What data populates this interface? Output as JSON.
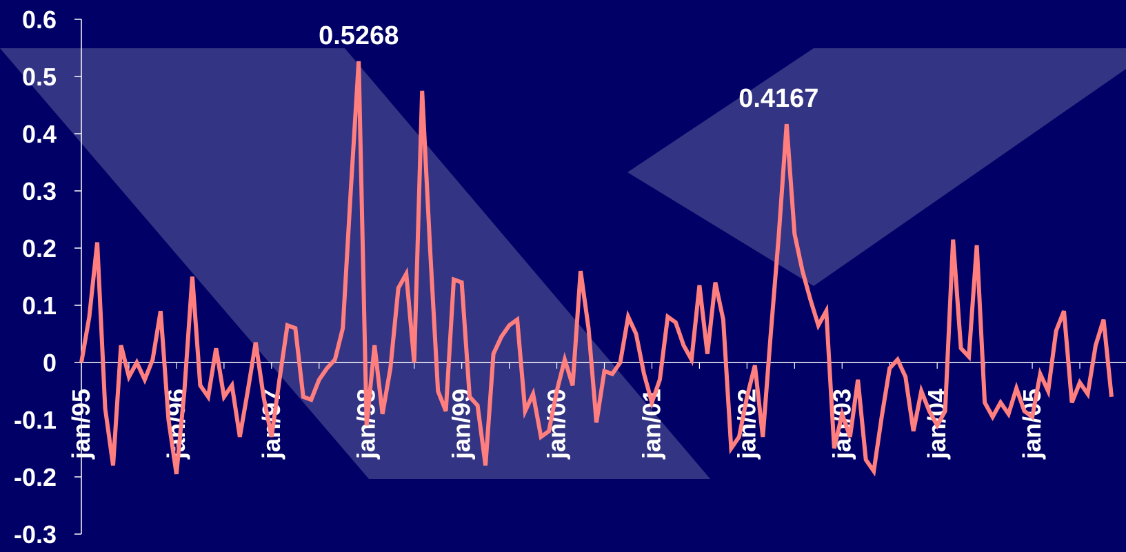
{
  "colors": {
    "background": "#000066",
    "line": "#ff7f7f",
    "axis": "#ffffff",
    "decor": "#3d3d8a"
  },
  "chart_data": {
    "type": "line",
    "title": "",
    "xlabel": "",
    "ylabel": "",
    "ylim": [
      -0.3,
      0.6
    ],
    "yticks": [
      "0.6",
      "0.5",
      "0.4",
      "0.3",
      "0.2",
      "0.1",
      "0",
      "-0.1",
      "-0.2",
      "-0.3"
    ],
    "ytick_values": [
      0.6,
      0.5,
      0.4,
      0.3,
      0.2,
      0.1,
      0,
      -0.1,
      -0.2,
      -0.3
    ],
    "xticks": [
      "jan/95",
      "jan/96",
      "jan/97",
      "jan/98",
      "jan/99",
      "jan/00",
      "jan/01",
      "jan/02",
      "jan/03",
      "jan/04",
      "jan/05"
    ],
    "grid": false,
    "annotations": [
      {
        "label": "0.5268",
        "x_index": 35,
        "y": 0.5268
      },
      {
        "label": "0.4167",
        "x_index": 88,
        "y": 0.4167
      }
    ],
    "series": [
      {
        "values": [
          0.0,
          0.08,
          0.21,
          -0.08,
          -0.18,
          0.03,
          -0.025,
          0.0,
          -0.03,
          0.005,
          0.09,
          -0.1,
          -0.195,
          -0.05,
          0.15,
          -0.04,
          -0.06,
          0.025,
          -0.06,
          -0.04,
          -0.13,
          -0.05,
          0.035,
          -0.06,
          -0.13,
          -0.03,
          0.065,
          0.06,
          -0.06,
          -0.065,
          -0.03,
          -0.01,
          0.005,
          0.06,
          0.3,
          0.5268,
          -0.11,
          0.03,
          -0.09,
          -0.01,
          0.13,
          0.155,
          0.0,
          0.475,
          0.2,
          -0.05,
          -0.085,
          0.145,
          0.14,
          -0.06,
          -0.075,
          -0.18,
          0.015,
          0.045,
          0.065,
          0.075,
          -0.085,
          -0.055,
          -0.13,
          -0.12,
          -0.05,
          0.005,
          -0.04,
          0.16,
          0.06,
          -0.105,
          -0.015,
          -0.02,
          0.0,
          0.08,
          0.05,
          -0.02,
          -0.07,
          -0.03,
          0.08,
          0.07,
          0.03,
          0.005,
          0.135,
          0.015,
          0.14,
          0.075,
          -0.15,
          -0.13,
          -0.06,
          -0.005,
          -0.13,
          0.05,
          0.22,
          0.4167,
          0.225,
          0.16,
          0.11,
          0.065,
          0.09,
          -0.15,
          -0.09,
          -0.13,
          -0.03,
          -0.17,
          -0.19,
          -0.095,
          -0.01,
          0.005,
          -0.025,
          -0.12,
          -0.05,
          -0.085,
          -0.11,
          -0.085,
          0.215,
          0.025,
          0.01,
          0.205,
          -0.07,
          -0.095,
          -0.07,
          -0.09,
          -0.045,
          -0.085,
          -0.095,
          -0.02,
          -0.05,
          0.055,
          0.09,
          -0.07,
          -0.035,
          -0.055,
          0.03,
          0.075,
          -0.06
        ]
      }
    ]
  }
}
